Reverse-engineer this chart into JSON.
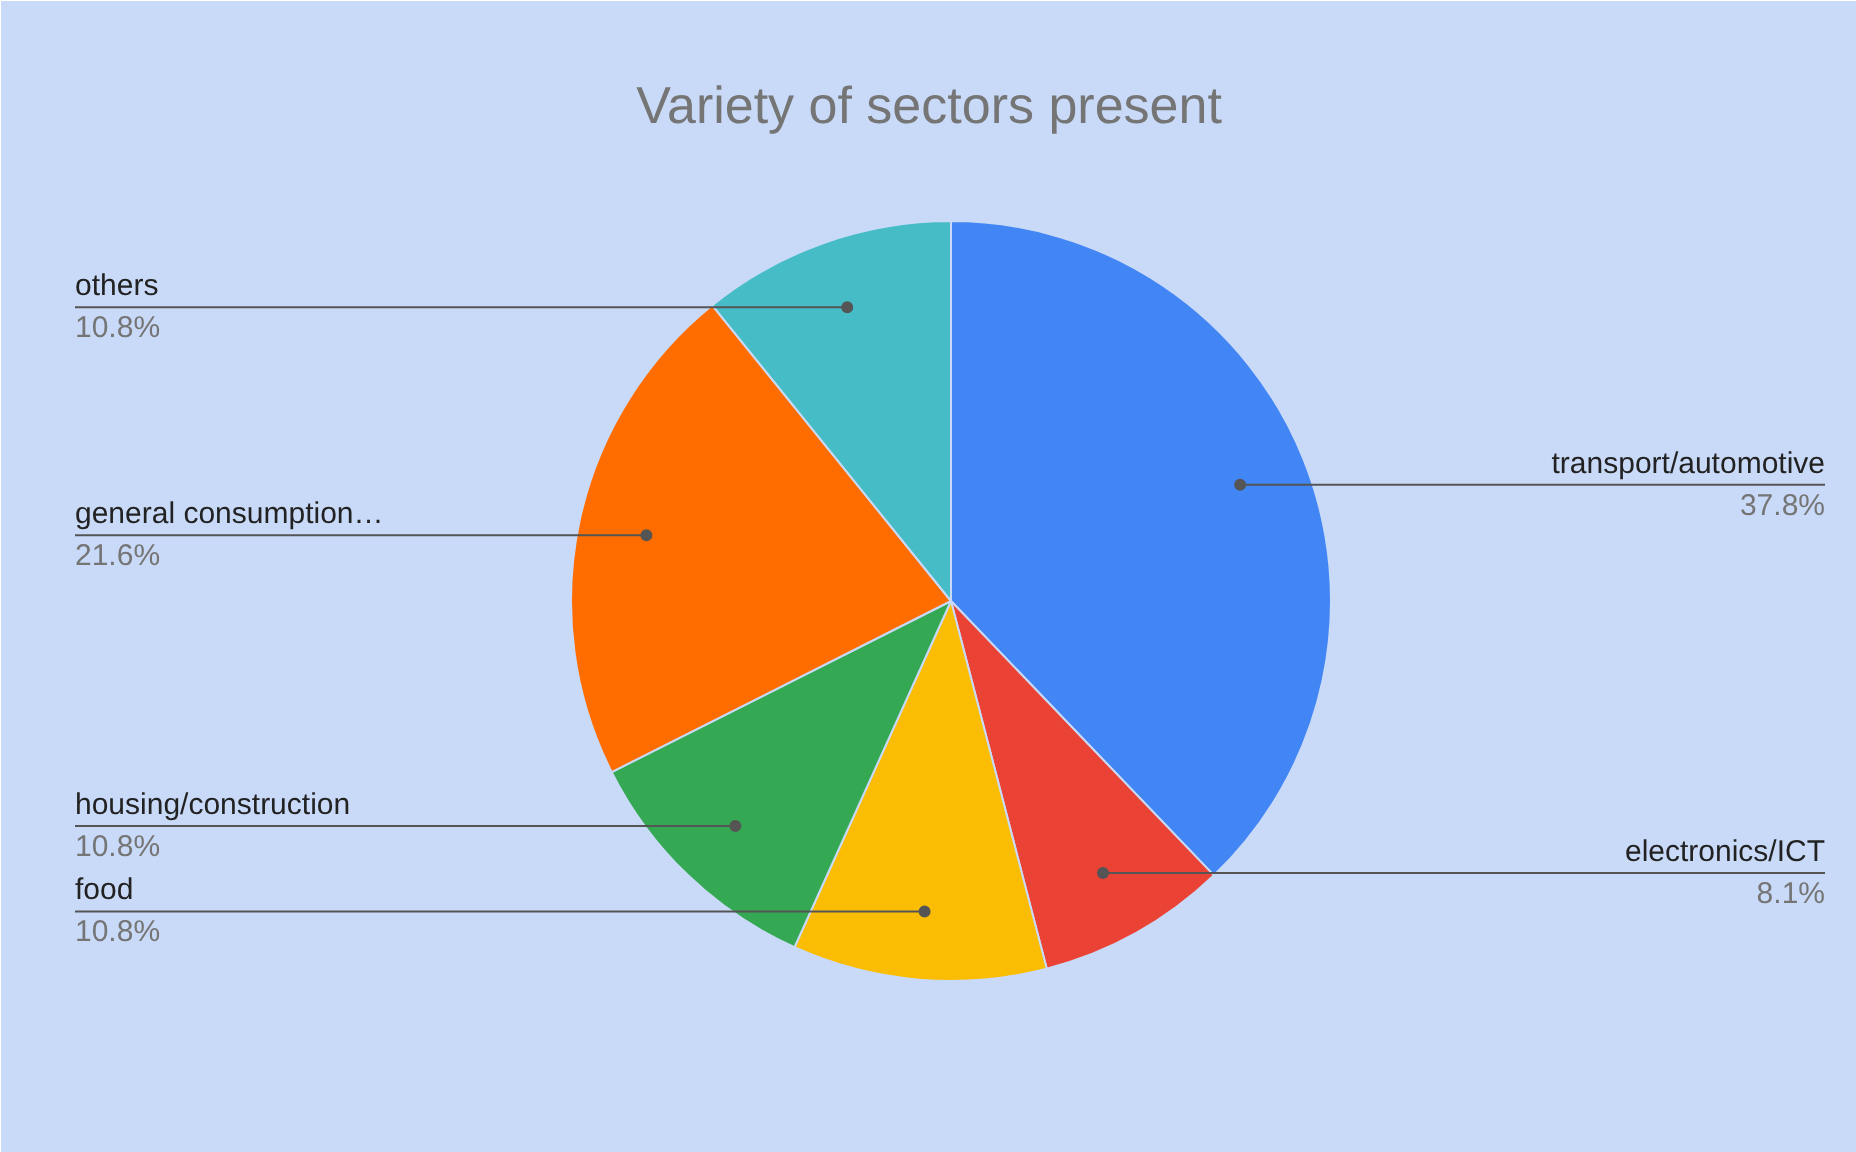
{
  "chart_data": {
    "type": "pie",
    "title": "Variety of sectors present",
    "categories": [
      "transport/automotive",
      "electronics/ICT",
      "food",
      "housing/construction",
      "general consumption…",
      "others"
    ],
    "values": [
      37.8,
      8.1,
      10.8,
      10.8,
      21.6,
      10.8
    ],
    "colors": [
      "#4285f4",
      "#ea4335",
      "#fbbc04",
      "#34a853",
      "#ff6d01",
      "#46bdc6"
    ],
    "value_labels": [
      "37.8%",
      "8.1%",
      "10.8%",
      "10.8%",
      "21.6%",
      "10.8%"
    ]
  }
}
